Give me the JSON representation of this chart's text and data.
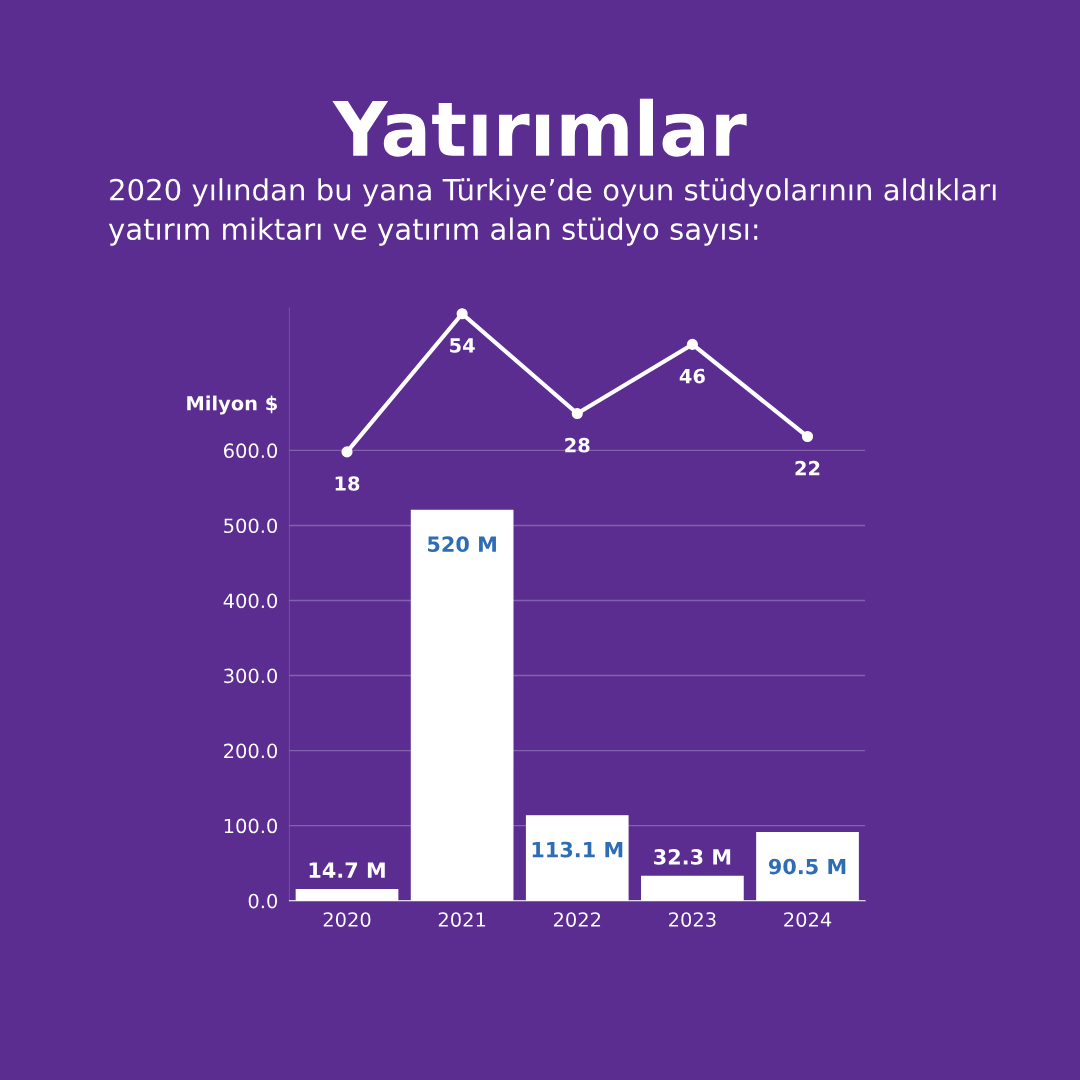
{
  "chart_data": {
    "type": "bar",
    "title": "Yatırımlar",
    "subtitle": "2020 yılından bu yana Türkiye’de oyun stüdyolarının aldıkları yatırım miktarı ve yatırım alan stüdyo sayısı:",
    "ylabel": "Milyon $",
    "categories": [
      "2020",
      "2021",
      "2022",
      "2023",
      "2024"
    ],
    "series": [
      {
        "color": "#ffffff",
        "values": [
          14.7,
          520,
          113.1,
          32.3,
          90.5
        ],
        "value_labels": [
          "14.7 M",
          "520 M",
          "113.1 M",
          "32.3 M",
          "90.5 M"
        ]
      },
      {
        "type": "line",
        "axis": "y2",
        "color": "#ffffff",
        "values": [
          18,
          54,
          28,
          46,
          22
        ],
        "data_labels": true,
        "marker": "circle"
      }
    ],
    "ylim": [
      0,
      790
    ],
    "yticks": [
      {
        "value": 0,
        "label": "0.0"
      },
      {
        "value": 100,
        "label": "100.0"
      },
      {
        "value": 200,
        "label": "200.0"
      },
      {
        "value": 300,
        "label": "300.0"
      },
      {
        "value": 400,
        "label": "400.0"
      },
      {
        "value": 500,
        "label": "500.0"
      },
      {
        "value": 600,
        "label": "600.0"
      }
    ],
    "grid": "y",
    "legend": false
  }
}
